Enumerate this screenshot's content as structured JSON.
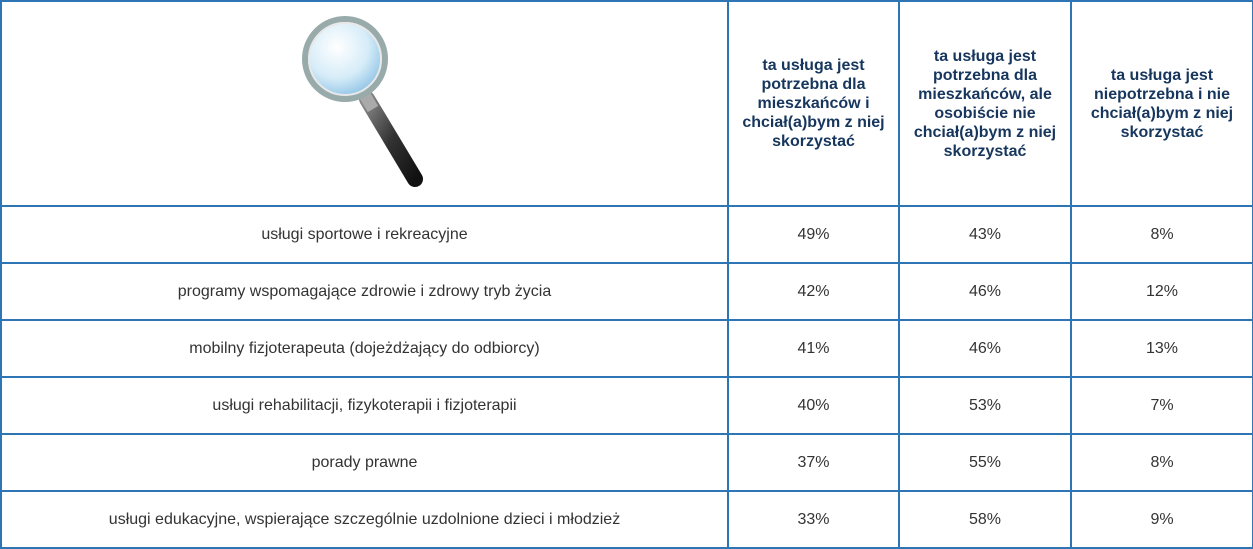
{
  "table": {
    "columns": [
      "ta usługa jest potrzebna dla mieszkańców i chciał(a)bym z niej skorzystać",
      "ta usługa jest potrzebna dla mieszkańców, ale osobiście nie chciał(a)bym z niej skorzystać",
      "ta usługa jest niepotrzebna i nie chciał(a)bym z niej skorzystać"
    ],
    "rows": [
      [
        "usługi sportowe i rekreacyjne",
        "49%",
        "43%",
        "8%"
      ],
      [
        "programy wspomagające zdrowie i zdrowy tryb życia",
        "42%",
        "46%",
        "12%"
      ],
      [
        "mobilny fizjoterapeuta (dojeżdżający do odbiorcy)",
        "41%",
        "46%",
        "13%"
      ],
      [
        "usługi rehabilitacji, fizykoterapii i fizjoterapii",
        "40%",
        "53%",
        "7%"
      ],
      [
        "porady prawne",
        "37%",
        "55%",
        "8%"
      ],
      [
        "usługi edukacyjne, wspierające szczególnie uzdolnione dzieci i młodzież",
        "33%",
        "58%",
        "9%"
      ]
    ]
  }
}
